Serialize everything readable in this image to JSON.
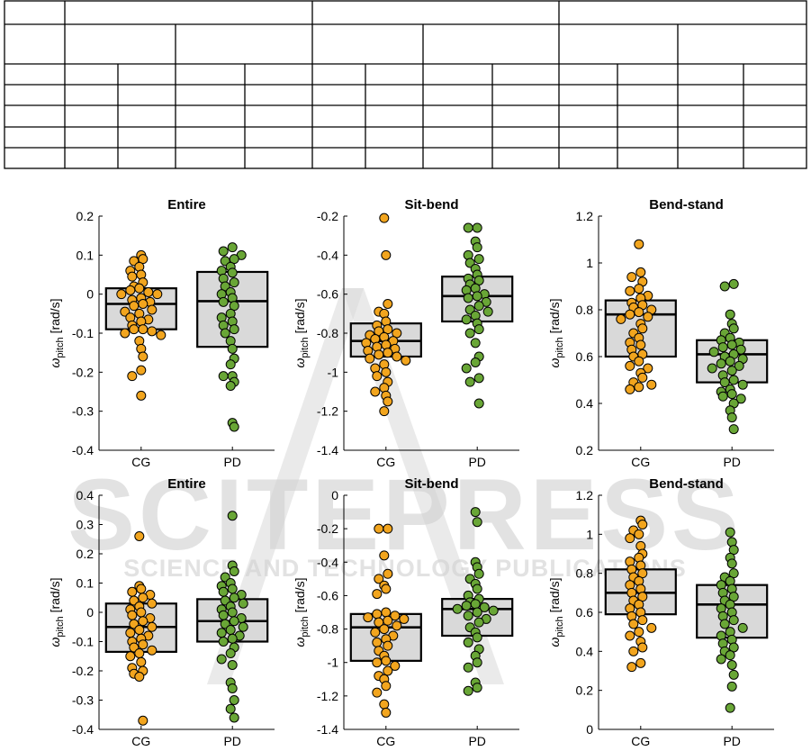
{
  "watermark": {
    "line1": "SCITEPRESS",
    "line2": "SCIENCE AND TECHNOLOGY PUBLICATIONS"
  },
  "colors": {
    "cg": "#f2a51e",
    "pd": "#69a636",
    "box": "#d9d9d9"
  },
  "chart_data": [
    {
      "type": "scatter",
      "title": "Entire",
      "ylabel": "ω_pitch [rad/s]",
      "categories": [
        "CG",
        "PD"
      ],
      "ylim": [
        -0.4,
        0.2
      ],
      "yticks": [
        -0.4,
        -0.3,
        -0.2,
        -0.1,
        0,
        0.1,
        0.2
      ],
      "box": [
        {
          "q1": -0.09,
          "median": -0.025,
          "q3": 0.015
        },
        {
          "q1": -0.135,
          "median": -0.018,
          "q3": 0.057
        }
      ],
      "series": [
        {
          "values": [
            0.1,
            0.09,
            0.085,
            0.07,
            0.06,
            0.05,
            0.045,
            0.03,
            0.02,
            0.015,
            0.01,
            0.005,
            0.0,
            0.0,
            -0.01,
            -0.015,
            -0.02,
            -0.025,
            -0.03,
            -0.04,
            -0.045,
            -0.05,
            -0.06,
            -0.065,
            -0.07,
            -0.08,
            -0.09,
            -0.09,
            -0.095,
            -0.1,
            -0.105,
            -0.12,
            -0.14,
            -0.16,
            -0.195,
            -0.21,
            -0.26
          ]
        },
        {
          "values": [
            0.12,
            0.11,
            0.1,
            0.09,
            0.085,
            0.07,
            0.06,
            0.055,
            0.04,
            0.03,
            0.02,
            0.005,
            0.0,
            -0.01,
            -0.02,
            -0.03,
            -0.05,
            -0.06,
            -0.07,
            -0.08,
            -0.09,
            -0.1,
            -0.12,
            -0.14,
            -0.165,
            -0.18,
            -0.21,
            -0.21,
            -0.225,
            -0.235,
            -0.33,
            -0.34
          ]
        }
      ]
    },
    {
      "type": "scatter",
      "title": "Sit-bend",
      "ylabel": "ω_pitch [rad/s]",
      "categories": [
        "CG",
        "PD"
      ],
      "ylim": [
        -1.4,
        -0.2
      ],
      "yticks": [
        -1.4,
        -1.2,
        -1,
        -0.8,
        -0.6,
        -0.4,
        -0.2
      ],
      "box": [
        {
          "q1": -0.92,
          "median": -0.84,
          "q3": -0.75
        },
        {
          "q1": -0.74,
          "median": -0.61,
          "q3": -0.51
        }
      ],
      "series": [
        {
          "values": [
            -0.21,
            -0.4,
            -0.65,
            -0.69,
            -0.7,
            -0.74,
            -0.76,
            -0.78,
            -0.79,
            -0.8,
            -0.81,
            -0.82,
            -0.83,
            -0.84,
            -0.85,
            -0.86,
            -0.87,
            -0.88,
            -0.89,
            -0.9,
            -0.91,
            -0.92,
            -0.93,
            -0.94,
            -0.96,
            -0.98,
            -1.0,
            -1.02,
            -1.05,
            -1.08,
            -1.1,
            -1.12,
            -1.15,
            -1.2
          ]
        },
        {
          "values": [
            -0.26,
            -0.26,
            -0.33,
            -0.36,
            -0.4,
            -0.42,
            -0.44,
            -0.47,
            -0.5,
            -0.52,
            -0.53,
            -0.55,
            -0.57,
            -0.58,
            -0.6,
            -0.61,
            -0.62,
            -0.64,
            -0.66,
            -0.68,
            -0.69,
            -0.71,
            -0.73,
            -0.75,
            -0.78,
            -0.8,
            -0.85,
            -0.92,
            -0.95,
            -0.98,
            -1.03,
            -1.05,
            -1.16
          ]
        }
      ]
    },
    {
      "type": "scatter",
      "title": "Bend-stand",
      "ylabel": "ω_pitch [rad/s]",
      "categories": [
        "CG",
        "PD"
      ],
      "ylim": [
        0.2,
        1.2
      ],
      "yticks": [
        0.2,
        0.4,
        0.6,
        0.8,
        1,
        1.2
      ],
      "box": [
        {
          "q1": 0.6,
          "median": 0.78,
          "q3": 0.84
        },
        {
          "q1": 0.49,
          "median": 0.61,
          "q3": 0.67
        }
      ],
      "series": [
        {
          "values": [
            1.08,
            0.96,
            0.94,
            0.92,
            0.89,
            0.88,
            0.86,
            0.85,
            0.83,
            0.82,
            0.81,
            0.8,
            0.79,
            0.78,
            0.77,
            0.76,
            0.74,
            0.72,
            0.7,
            0.68,
            0.66,
            0.65,
            0.63,
            0.61,
            0.6,
            0.58,
            0.56,
            0.55,
            0.53,
            0.51,
            0.49,
            0.48,
            0.47,
            0.46
          ]
        },
        {
          "values": [
            0.91,
            0.9,
            0.78,
            0.74,
            0.72,
            0.7,
            0.68,
            0.67,
            0.66,
            0.65,
            0.64,
            0.63,
            0.62,
            0.61,
            0.6,
            0.59,
            0.58,
            0.57,
            0.56,
            0.55,
            0.54,
            0.52,
            0.5,
            0.49,
            0.48,
            0.46,
            0.45,
            0.44,
            0.43,
            0.42,
            0.4,
            0.37,
            0.34,
            0.29
          ]
        }
      ]
    },
    {
      "type": "scatter",
      "title": "Entire",
      "ylabel": "ω_pitch [rad/s]",
      "categories": [
        "CG",
        "PD"
      ],
      "ylim": [
        -0.4,
        0.4
      ],
      "yticks": [
        -0.4,
        -0.3,
        -0.2,
        -0.1,
        0,
        0.1,
        0.2,
        0.3,
        0.4
      ],
      "box": [
        {
          "q1": -0.135,
          "median": -0.05,
          "q3": 0.03
        },
        {
          "q1": -0.1,
          "median": -0.03,
          "q3": 0.045
        }
      ],
      "series": [
        {
          "values": [
            0.26,
            0.09,
            0.08,
            0.07,
            0.06,
            0.05,
            0.04,
            0.03,
            0.02,
            0.01,
            0.0,
            -0.01,
            -0.02,
            -0.03,
            -0.04,
            -0.05,
            -0.06,
            -0.07,
            -0.08,
            -0.09,
            -0.1,
            -0.11,
            -0.12,
            -0.13,
            -0.14,
            -0.15,
            -0.17,
            -0.19,
            -0.2,
            -0.21,
            -0.22,
            -0.37
          ]
        },
        {
          "values": [
            0.33,
            0.16,
            0.14,
            0.12,
            0.1,
            0.09,
            0.08,
            0.07,
            0.06,
            0.05,
            0.04,
            0.03,
            0.02,
            0.01,
            0.0,
            -0.01,
            -0.02,
            -0.03,
            -0.04,
            -0.05,
            -0.06,
            -0.07,
            -0.08,
            -0.09,
            -0.1,
            -0.12,
            -0.14,
            -0.16,
            -0.18,
            -0.24,
            -0.26,
            -0.3,
            -0.33,
            -0.36
          ]
        }
      ]
    },
    {
      "type": "scatter",
      "title": "Sit-bend",
      "ylabel": "ω_pitch [rad/s]",
      "categories": [
        "CG",
        "PD"
      ],
      "ylim": [
        -1.4,
        0
      ],
      "yticks": [
        -1.4,
        -1.2,
        -1,
        -0.8,
        -0.6,
        -0.4,
        -0.2,
        0
      ],
      "box": [
        {
          "q1": -0.99,
          "median": -0.79,
          "q3": -0.71
        },
        {
          "q1": -0.84,
          "median": -0.68,
          "q3": -0.62
        }
      ],
      "series": [
        {
          "values": [
            -0.2,
            -0.2,
            -0.36,
            -0.47,
            -0.5,
            -0.54,
            -0.56,
            -0.59,
            -0.7,
            -0.71,
            -0.72,
            -0.73,
            -0.74,
            -0.75,
            -0.76,
            -0.78,
            -0.8,
            -0.82,
            -0.84,
            -0.86,
            -0.88,
            -0.9,
            -0.93,
            -0.96,
            -0.99,
            -1.0,
            -1.02,
            -1.05,
            -1.08,
            -1.1,
            -1.14,
            -1.18,
            -1.25,
            -1.3
          ]
        },
        {
          "values": [
            -0.1,
            -0.16,
            -0.4,
            -0.43,
            -0.47,
            -0.5,
            -0.53,
            -0.56,
            -0.6,
            -0.62,
            -0.64,
            -0.65,
            -0.66,
            -0.67,
            -0.68,
            -0.69,
            -0.7,
            -0.72,
            -0.74,
            -0.76,
            -0.79,
            -0.82,
            -0.85,
            -0.88,
            -0.92,
            -0.96,
            -1.0,
            -1.03,
            -1.12,
            -1.15,
            -1.17
          ]
        }
      ]
    },
    {
      "type": "scatter",
      "title": "Bend-stand",
      "ylabel": "ω_pitch [rad/s]",
      "categories": [
        "CG",
        "PD"
      ],
      "ylim": [
        0,
        1.2
      ],
      "yticks": [
        0,
        0.2,
        0.4,
        0.6,
        0.8,
        1,
        1.2
      ],
      "box": [
        {
          "q1": 0.59,
          "median": 0.7,
          "q3": 0.82
        },
        {
          "q1": 0.47,
          "median": 0.64,
          "q3": 0.74
        }
      ],
      "series": [
        {
          "values": [
            1.07,
            1.05,
            1.02,
            1.0,
            0.98,
            0.94,
            0.9,
            0.88,
            0.86,
            0.84,
            0.82,
            0.8,
            0.78,
            0.76,
            0.74,
            0.72,
            0.7,
            0.68,
            0.66,
            0.64,
            0.62,
            0.6,
            0.58,
            0.56,
            0.54,
            0.52,
            0.5,
            0.48,
            0.45,
            0.42,
            0.4,
            0.34,
            0.32
          ]
        },
        {
          "values": [
            1.01,
            0.96,
            0.92,
            0.88,
            0.85,
            0.8,
            0.78,
            0.76,
            0.74,
            0.72,
            0.7,
            0.68,
            0.66,
            0.64,
            0.62,
            0.6,
            0.58,
            0.56,
            0.54,
            0.52,
            0.5,
            0.48,
            0.46,
            0.44,
            0.42,
            0.4,
            0.38,
            0.36,
            0.33,
            0.28,
            0.22,
            0.11
          ]
        }
      ]
    }
  ]
}
